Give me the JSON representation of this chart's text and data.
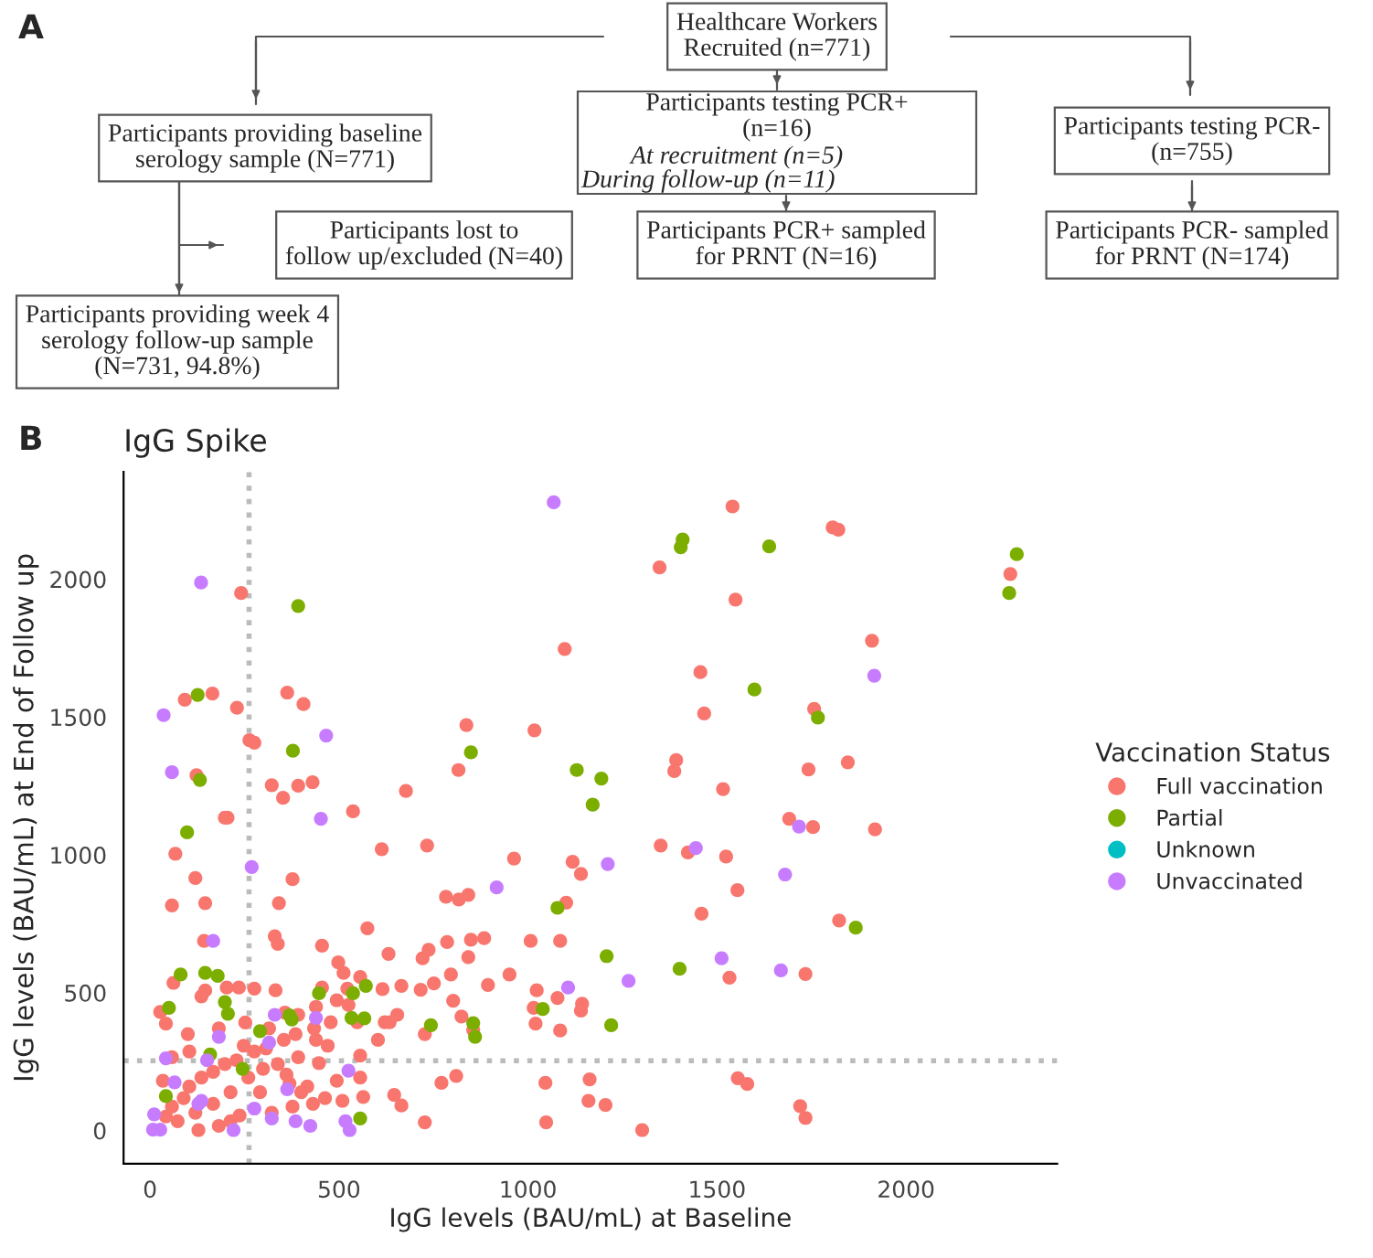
{
  "chart_data": [
    {
      "type": "other",
      "title": "A",
      "annotations": [
        "Healthcare Workers\nRecruited (n=771)",
        "Participants providing baseline\nserology sample (N=771)",
        "Participants testing PCR+\n(n=16)",
        "At recruitment (n=5)",
        "During follow-up (n=11)",
        "Participants testing PCR-\n(n=755)",
        "Participants lost to\nfollow up/excluded (N=40)",
        "Participants PCR+ sampled\nfor PRNT (N=16)",
        "Participants PCR- sampled\nfor PRNT (N=174)",
        "Participants providing week 4\nserology follow-up sample\n(N=731, 94.8%)"
      ]
    },
    {
      "type": "scatter",
      "title": "IgG Spike",
      "annotations": [
        "B"
      ],
      "xlabel": "IgG levels (BAU/mL) at Baseline",
      "ylabel": "IgG levels (BAU/mL) at End of Follow up",
      "legend_title": "Vaccination Status",
      "legend": "right",
      "grid": false,
      "marker": "circle",
      "xlim": [
        -70,
        2400
      ],
      "ylim": [
        -120,
        2390
      ],
      "xticks": [
        0,
        500,
        1000,
        1500,
        2000
      ],
      "yticks": [
        0,
        500,
        1000,
        1500,
        2000
      ],
      "ref_lines": [
        {
          "axis": "x",
          "value": 262,
          "color": "#bbbbbb",
          "line_style": "dotted"
        },
        {
          "axis": "y",
          "value": 253,
          "color": "#bbbbbb",
          "line_style": "dotted"
        }
      ],
      "series": [
        {
          "name": "Full vaccination",
          "color": "#f8766d",
          "x": [
            1541,
            1806,
            1821,
            1348,
            1549,
            2276,
            1910,
            1456,
            1466,
            1757,
            1392,
            1387,
            1742,
            1846,
            1516,
            1691,
            1754,
            1918,
            1351,
            1423,
            1524,
            1554,
            1459,
            1823,
            1533,
            1734,
            1555,
            1580,
            1720,
            1734,
            1302,
            1205,
            241,
            1097,
            92,
            165,
            230,
            363,
            406,
            837,
            1017,
            263,
            276,
            123,
            322,
            352,
            392,
            430,
            677,
            816,
            198,
            205,
            537,
            613,
            733,
            963,
            1118,
            67,
            120,
            58,
            146,
            377,
            341,
            143,
            330,
            338,
            575,
            455,
            631,
            721,
            737,
            783,
            817,
            842,
            849,
            786,
            884,
            1007,
            1085,
            1101,
            1140,
            842,
            796,
            894,
            951,
            1023,
            802,
            824,
            727,
            855,
            1020,
            1085,
            1143,
            1140,
            665,
            615,
            654,
            621,
            716,
            751,
            771,
            810,
            1046,
            1163,
            1160,
            646,
            665,
            727,
            1048,
            1078,
            1015,
            27,
            42,
            62,
            100,
            136,
            146,
            203,
            235,
            276,
            332,
            357,
            392,
            439,
            455,
            498,
            512,
            556,
            522,
            494,
            525,
            478,
            434,
            385,
            354,
            307,
            276,
            248,
            229,
            198,
            167,
            136,
            104,
            89,
            58,
            42,
            73,
            120,
            167,
            213,
            260,
            299,
            338,
            369,
            400,
            431,
            463,
            509,
            564,
            556,
            494,
            447,
            392,
            361,
            291,
            237,
            182,
            128,
            213,
            322,
            377,
            416,
            470,
            556,
            603,
            634,
            548,
            439,
            315,
            252,
            182,
            104,
            58,
            34
          ],
          "values": [
            2264,
            2188,
            2180,
            2043,
            1926,
            2019,
            1777,
            1663,
            1513,
            1530,
            1344,
            1304,
            1310,
            1336,
            1239,
            1131,
            1101,
            1093,
            1034,
            1009,
            994,
            872,
            787,
            762,
            555,
            568,
            190,
            169,
            89,
            46,
            2,
            93,
            1950,
            1747,
            1563,
            1585,
            1534,
            1589,
            1547,
            1471,
            1452,
            1416,
            1407,
            1289,
            1253,
            1207,
            1251,
            1264,
            1232,
            1308,
            1135,
            1135,
            1158,
            1021,
            1034,
            987,
            975,
            1004,
            916,
            817,
            825,
            912,
            825,
            688,
            705,
            677,
            734,
            671,
            641,
            625,
            656,
            848,
            838,
            855,
            692,
            684,
            698,
            688,
            688,
            827,
            931,
            629,
            566,
            528,
            566,
            509,
            471,
            414,
            350,
            365,
            388,
            363,
            460,
            435,
            525,
            513,
            420,
            393,
            511,
            534,
            173,
            198,
            173,
            186,
            108,
            129,
            91,
            30,
            30,
            481,
            445,
            430,
            388,
            536,
            350,
            487,
            508,
            519,
            519,
            515,
            509,
            428,
            420,
            449,
            519,
            610,
            572,
            557,
            515,
            473,
            456,
            393,
            371,
            350,
            329,
            298,
            287,
            308,
            255,
            241,
            213,
            192,
            160,
            118,
            87,
            51,
            34,
            65,
            97,
            139,
            192,
            224,
            241,
            171,
            139,
            97,
            118,
            108,
            122,
            192,
            181,
            245,
            266,
            203,
            139,
            55,
            17,
            2,
            34,
            65,
            87,
            160,
            308,
            272,
            329,
            393,
            393,
            329,
            371,
            392,
            371,
            287,
            266,
            181
          ]
        },
        {
          "name": "Partial",
          "color": "#7cae00",
          "x": [
            1409,
            1404,
            1638,
            2293,
            2273,
            1599,
            1767,
            1194,
            1171,
            1208,
            1401,
            1867,
            1220,
            392,
            126,
            378,
            132,
            98,
            849,
            1129,
            81,
            146,
            179,
            50,
            198,
            206,
            369,
            375,
            447,
            537,
            571,
            533,
            567,
            291,
            159,
            42,
            245,
            556,
            743,
            855,
            860,
            1078,
            1039
          ],
          "values": [
            2144,
            2116,
            2119,
            2091,
            1950,
            1600,
            1498,
            1277,
            1182,
            633,
            587,
            736,
            382,
            1903,
            1580,
            1378,
            1272,
            1082,
            1372,
            1308,
            566,
            572,
            561,
            445,
            466,
            424,
            418,
            403,
            498,
            498,
            525,
            409,
            407,
            361,
            276,
            125,
            224,
            44,
            382,
            390,
            340,
            808,
            441
          ]
        },
        {
          "name": "Unknown",
          "color": "#00bfc4"
        },
        {
          "name": "Unvaccinated",
          "color": "#c77cff",
          "x": [
            1916,
            1717,
            1444,
            1211,
            1680,
            1512,
            1669,
            1266,
            1068,
            135,
            36,
            466,
            58,
            452,
            269,
            167,
            917,
            1106,
            330,
            439,
            182,
            42,
            151,
            315,
            525,
            363,
            65,
            136,
            11,
            27,
            8,
            221,
            322,
            385,
            424,
            517,
            528,
            128,
            276
          ],
          "values": [
            1650,
            1103,
            1025,
            967,
            929,
            625,
            581,
            543,
            2279,
            1988,
            1507,
            1433,
            1300,
            1131,
            956,
            688,
            882,
            519,
            420,
            409,
            340,
            262,
            255,
            319,
            217,
            150,
            175,
            108,
            59,
            3,
            3,
            2,
            44,
            34,
            17,
            34,
            2,
            97,
            80
          ]
        }
      ]
    }
  ]
}
